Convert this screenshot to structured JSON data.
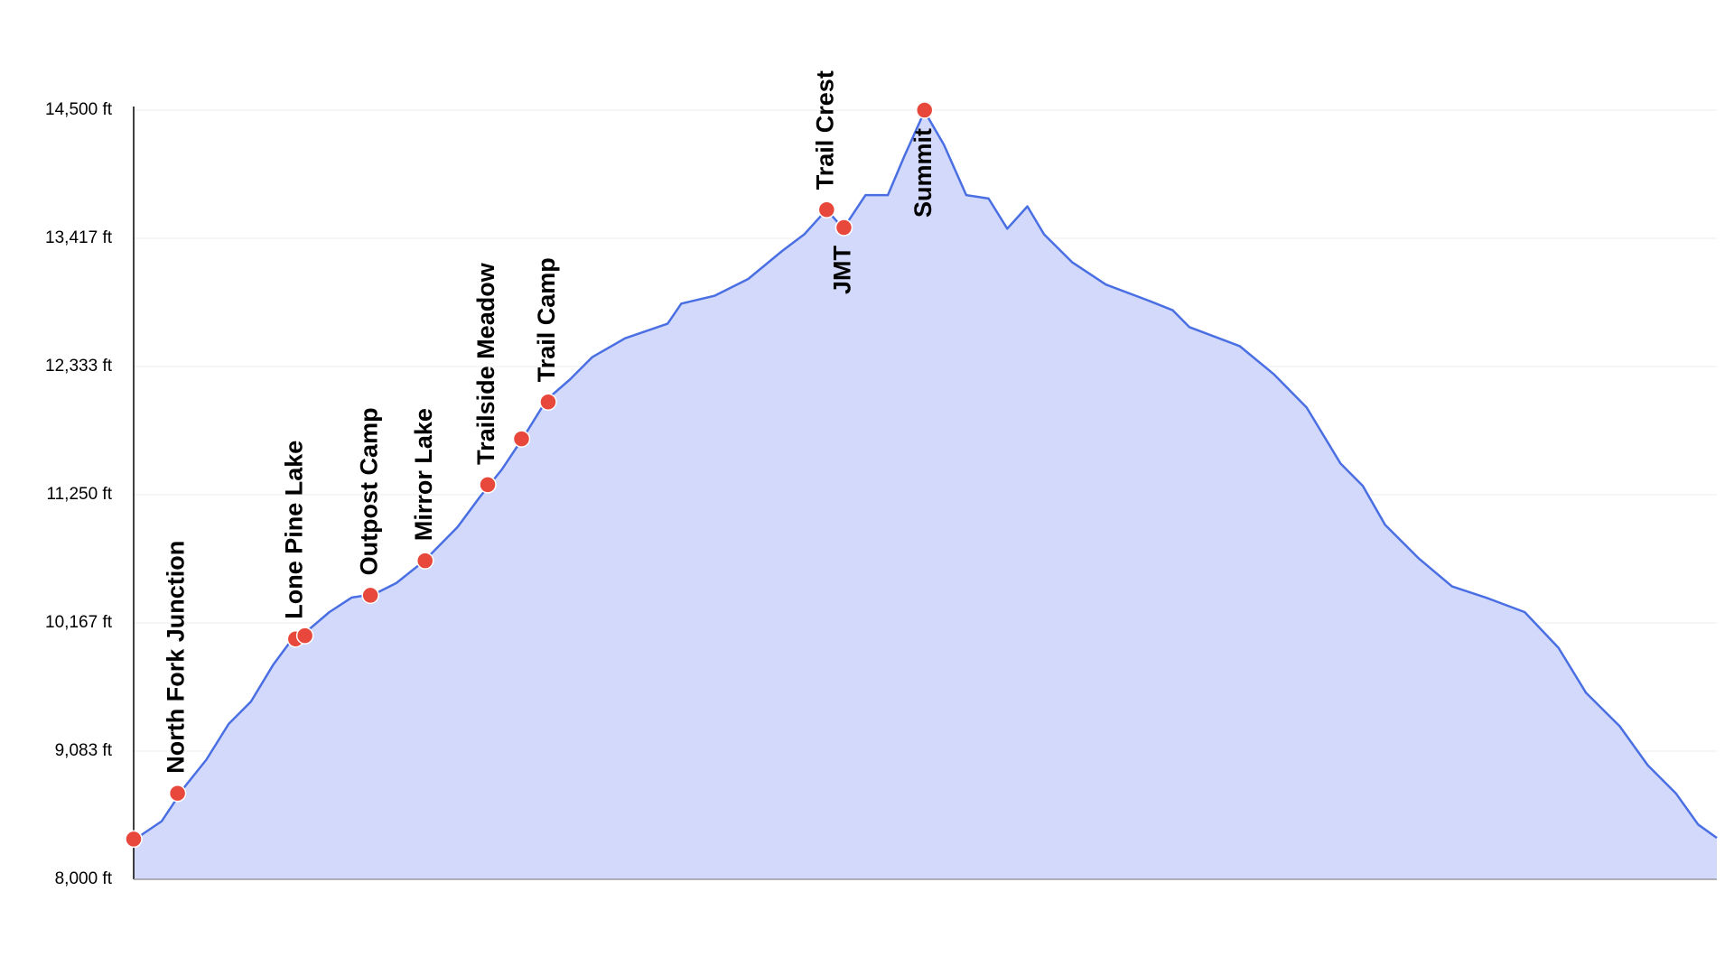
{
  "chart_data": {
    "type": "area",
    "x": [
      0,
      0.39,
      0.7,
      1.01,
      1.32,
      1.63,
      1.94,
      2.17,
      2.41,
      2.72,
      3.03,
      3.34,
      3.65,
      4.04,
      4.5,
      4.81,
      5.12,
      5.43,
      5.74,
      6.06,
      6.37,
      6.83,
      7.42,
      7.61,
      8.07,
      8.54,
      9.01,
      9.32,
      9.63,
      9.86,
      10.17,
      10.48,
      10.71,
      10.99,
      11.26,
      11.57,
      11.88,
      12.14,
      12.42,
      12.65,
      13.04,
      13.51,
      14.13,
      14.44,
      14.67,
      15.37,
      15.84,
      16.3,
      16.77,
      17.08,
      17.39,
      17.86,
      18.32,
      18.79,
      19.33,
      19.8,
      20.18,
      20.65,
      21.04,
      21.43,
      21.74,
      22.0
    ],
    "series": [
      {
        "color": "#4a6fe3",
        "fill": "#d2d9fb",
        "values": [
          8331,
          8491,
          8775,
          9011,
          9313,
          9502,
          9814,
          10003,
          10097,
          10258,
          10381,
          10409,
          10503,
          10692,
          10976,
          11231,
          11467,
          11750,
          12053,
          12223,
          12412,
          12572,
          12695,
          12865,
          12931,
          13073,
          13309,
          13451,
          13659,
          13498,
          13782,
          13782,
          14112,
          14490,
          14207,
          13782,
          13753,
          13498,
          13687,
          13451,
          13215,
          13026,
          12884,
          12809,
          12667,
          12506,
          12270,
          11987,
          11514,
          11325,
          10995,
          10711,
          10475,
          10381,
          10258,
          9956,
          9578,
          9294,
          8964,
          8727,
          8463,
          8350
        ]
      }
    ],
    "markers": {
      "color": "#e8483b",
      "x": [
        0,
        0.61,
        2.25,
        2.38,
        3.29,
        4.05,
        4.92,
        5.39,
        5.76,
        9.63,
        9.87,
        10.99
      ],
      "values": [
        8340,
        8727,
        10031,
        10059,
        10400,
        10692,
        11335,
        11722,
        12034,
        13659,
        13508,
        14500
      ],
      "labels": [
        null,
        "North Fork Junction",
        "Lone Pine Lake",
        null,
        "Outpost Camp",
        "Mirror Lake",
        "Trailside Meadow",
        null,
        "Trail Camp",
        "Trail Crest",
        "JMT",
        "Summit"
      ],
      "label_positions": [
        null,
        "above",
        "above",
        null,
        "above",
        "above",
        "above",
        null,
        "above",
        "above",
        "below",
        "below"
      ]
    },
    "xlim": [
      0,
      22
    ],
    "ylim": [
      8000,
      14500
    ],
    "yticks": [
      {
        "value": 8000,
        "label": "8,000 ft"
      },
      {
        "value": 9083,
        "label": "9,083 ft"
      },
      {
        "value": 10167,
        "label": "10,167 ft"
      },
      {
        "value": 11250,
        "label": "11,250 ft"
      },
      {
        "value": 12333,
        "label": "12,333 ft"
      },
      {
        "value": 13417,
        "label": "13,417 ft"
      },
      {
        "value": 14500,
        "label": "14,500 ft"
      }
    ],
    "grid": true
  }
}
